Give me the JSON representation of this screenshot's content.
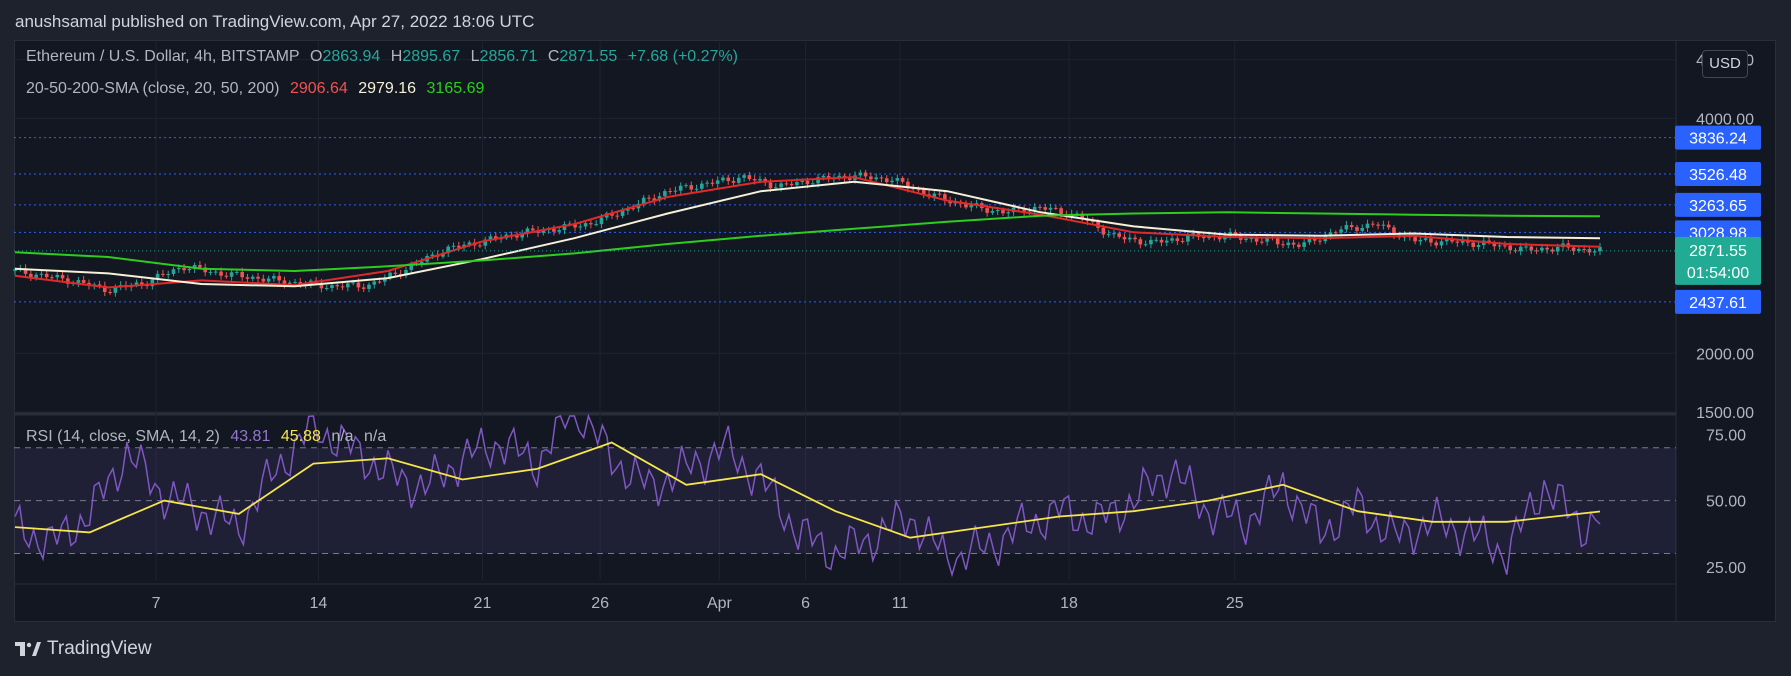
{
  "header": {
    "published_line": "anushsamal published on TradingView.com, Apr 27, 2022 18:06 UTC"
  },
  "legend": {
    "symbol": "Ethereum / U.S. Dollar, 4h, BITSTAMP",
    "open_label": "O",
    "open": "2863.94",
    "high_label": "H",
    "high": "2895.67",
    "low_label": "L",
    "low": "2856.71",
    "close_label": "C",
    "close": "2871.55",
    "change": "+7.68 (+0.27%)",
    "sma_label": "20-50-200-SMA (close, 20, 50, 200)",
    "sma20": "2906.64",
    "sma50": "2979.16",
    "sma200": "3165.69",
    "rsi_label": "RSI (14, close, SMA, 14, 2)",
    "rsi": "43.81",
    "rsi_sma": "45.88",
    "na1": "n/a",
    "na2": "n/a"
  },
  "currency_button": "USD",
  "footer": {
    "brand": "TradingView"
  },
  "colors": {
    "background": "#131722",
    "up": "#26a69a",
    "down": "#ef5350",
    "sma20": "#e02a2a",
    "sma50": "#f5f0d7",
    "sma200": "#2ecc1f",
    "rsi": "#7e57c2",
    "rsi_sma": "#f5e64b",
    "badge": "#2962ff",
    "price_badge": "#22ab94"
  },
  "chart_data": [
    {
      "type": "candlestick",
      "title": "Ethereum / U.S. Dollar, 4h, BITSTAMP",
      "x_ticks": [
        "7",
        "14",
        "21",
        "26",
        "Apr",
        "6",
        "11",
        "18",
        "25"
      ],
      "y_ticks": [
        "4500.00",
        "4000.00",
        "2000.00",
        "1500.00"
      ],
      "ylim": [
        1500,
        4650
      ],
      "support_resistance_levels": [
        3836.24,
        3526.48,
        3263.65,
        3028.98,
        2437.61
      ],
      "level_labels": [
        "3836.24",
        "3526.48",
        "3263.65",
        "3028.98",
        "2437.61"
      ],
      "last_price": "2871.55",
      "countdown": "01:54:00",
      "price_path": [
        [
          0,
          2700
        ],
        [
          3,
          2620
        ],
        [
          5,
          2540
        ],
        [
          7,
          2600
        ],
        [
          9,
          2740
        ],
        [
          11,
          2680
        ],
        [
          13,
          2640
        ],
        [
          15,
          2600
        ],
        [
          17,
          2570
        ],
        [
          19,
          2580
        ],
        [
          21,
          2720
        ],
        [
          23,
          2880
        ],
        [
          25,
          2950
        ],
        [
          27,
          3020
        ],
        [
          29,
          3060
        ],
        [
          31,
          3110
        ],
        [
          33,
          3240
        ],
        [
          35,
          3380
        ],
        [
          37,
          3440
        ],
        [
          39,
          3500
        ],
        [
          41,
          3420
        ],
        [
          43,
          3480
        ],
        [
          45,
          3510
        ],
        [
          47,
          3480
        ],
        [
          49,
          3350
        ],
        [
          51,
          3260
        ],
        [
          53,
          3200
        ],
        [
          55,
          3240
        ],
        [
          57,
          3170
        ],
        [
          59,
          2990
        ],
        [
          61,
          2940
        ],
        [
          63,
          2990
        ],
        [
          65,
          3000
        ],
        [
          67,
          2960
        ],
        [
          69,
          2920
        ],
        [
          71,
          3050
        ],
        [
          73,
          3100
        ],
        [
          75,
          2960
        ],
        [
          77,
          2950
        ],
        [
          79,
          2930
        ],
        [
          81,
          2880
        ],
        [
          83,
          2900
        ],
        [
          85,
          2871.55
        ]
      ],
      "series": [
        {
          "name": "SMA 20",
          "values": [
            [
              0,
              2660
            ],
            [
              5,
              2560
            ],
            [
              10,
              2620
            ],
            [
              15,
              2580
            ],
            [
              20,
              2700
            ],
            [
              25,
              2950
            ],
            [
              30,
              3100
            ],
            [
              35,
              3330
            ],
            [
              40,
              3460
            ],
            [
              45,
              3500
            ],
            [
              50,
              3300
            ],
            [
              55,
              3180
            ],
            [
              60,
              3030
            ],
            [
              65,
              2990
            ],
            [
              70,
              2980
            ],
            [
              75,
              3000
            ],
            [
              80,
              2930
            ],
            [
              85,
              2906.64
            ]
          ]
        },
        {
          "name": "SMA 50",
          "values": [
            [
              0,
              2720
            ],
            [
              5,
              2680
            ],
            [
              10,
              2590
            ],
            [
              15,
              2570
            ],
            [
              20,
              2640
            ],
            [
              25,
              2800
            ],
            [
              30,
              2980
            ],
            [
              35,
              3190
            ],
            [
              40,
              3380
            ],
            [
              45,
              3460
            ],
            [
              50,
              3380
            ],
            [
              55,
              3200
            ],
            [
              60,
              3080
            ],
            [
              65,
              3010
            ],
            [
              70,
              3000
            ],
            [
              75,
              3020
            ],
            [
              80,
              2990
            ],
            [
              85,
              2979.16
            ]
          ]
        },
        {
          "name": "SMA 200",
          "values": [
            [
              0,
              2860
            ],
            [
              5,
              2820
            ],
            [
              10,
              2720
            ],
            [
              15,
              2700
            ],
            [
              20,
              2740
            ],
            [
              25,
              2790
            ],
            [
              30,
              2850
            ],
            [
              35,
              2930
            ],
            [
              40,
              3000
            ],
            [
              45,
              3060
            ],
            [
              50,
              3120
            ],
            [
              55,
              3170
            ],
            [
              60,
              3190
            ],
            [
              65,
              3200
            ],
            [
              70,
              3190
            ],
            [
              75,
              3180
            ],
            [
              80,
              3170
            ],
            [
              85,
              3165.69
            ]
          ]
        }
      ]
    },
    {
      "type": "line",
      "title": "RSI (14, close, SMA, 14, 2)",
      "y_ticks": [
        "75.00",
        "50.00",
        "25.00"
      ],
      "ylim": [
        20,
        82
      ],
      "bands": [
        70,
        50,
        30
      ],
      "series": [
        {
          "name": "RSI",
          "values": [
            [
              0,
              40
            ],
            [
              2,
              34
            ],
            [
              4,
              45
            ],
            [
              6,
              68
            ],
            [
              8,
              52
            ],
            [
              10,
              46
            ],
            [
              12,
              40
            ],
            [
              14,
              62
            ],
            [
              16,
              78
            ],
            [
              18,
              70
            ],
            [
              20,
              60
            ],
            [
              22,
              55
            ],
            [
              24,
              66
            ],
            [
              26,
              72
            ],
            [
              28,
              64
            ],
            [
              30,
              86
            ],
            [
              32,
              66
            ],
            [
              34,
              55
            ],
            [
              36,
              62
            ],
            [
              38,
              70
            ],
            [
              40,
              58
            ],
            [
              42,
              38
            ],
            [
              44,
              30
            ],
            [
              46,
              36
            ],
            [
              48,
              44
            ],
            [
              50,
              28
            ],
            [
              52,
              32
            ],
            [
              54,
              40
            ],
            [
              56,
              46
            ],
            [
              58,
              42
            ],
            [
              60,
              50
            ],
            [
              62,
              62
            ],
            [
              64,
              46
            ],
            [
              66,
              42
            ],
            [
              68,
              56
            ],
            [
              70,
              38
            ],
            [
              72,
              48
            ],
            [
              74,
              36
            ],
            [
              76,
              42
            ],
            [
              78,
              38
            ],
            [
              80,
              30
            ],
            [
              82,
              56
            ],
            [
              84,
              40
            ],
            [
              85,
              43.81
            ]
          ]
        },
        {
          "name": "RSI SMA",
          "values": [
            [
              0,
              40
            ],
            [
              4,
              38
            ],
            [
              8,
              50
            ],
            [
              12,
              45
            ],
            [
              16,
              64
            ],
            [
              20,
              66
            ],
            [
              24,
              58
            ],
            [
              28,
              62
            ],
            [
              32,
              72
            ],
            [
              36,
              56
            ],
            [
              40,
              60
            ],
            [
              44,
              46
            ],
            [
              48,
              36
            ],
            [
              52,
              40
            ],
            [
              56,
              44
            ],
            [
              60,
              46
            ],
            [
              64,
              50
            ],
            [
              68,
              56
            ],
            [
              72,
              46
            ],
            [
              76,
              42
            ],
            [
              80,
              42
            ],
            [
              85,
              45.88
            ]
          ]
        }
      ]
    }
  ]
}
